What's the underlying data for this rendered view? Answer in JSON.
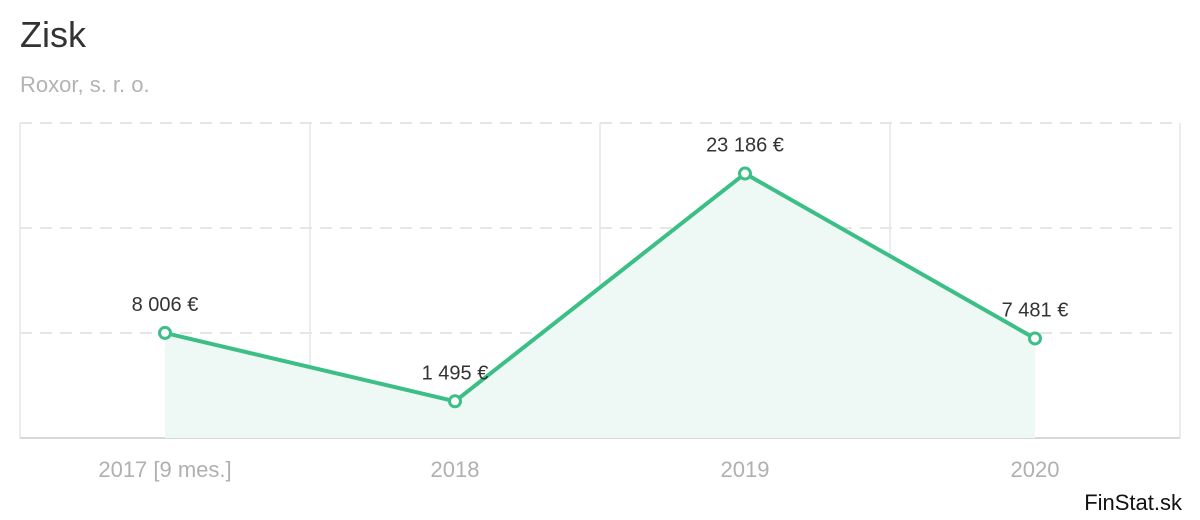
{
  "title": "Zisk",
  "subtitle": "Roxor, s. r. o.",
  "brand": "FinStat.sk",
  "chart_data": {
    "type": "area",
    "categories": [
      "2017 [9 mes.]",
      "2018",
      "2019",
      "2020"
    ],
    "values": [
      8006,
      1495,
      23186,
      7481
    ],
    "data_labels": [
      "8 006 €",
      "1 495 €",
      "23 186 €",
      "7 481 €"
    ],
    "ylim": [
      -2000,
      28000
    ],
    "grid": true,
    "line_color": "#3cbf86",
    "fill_color": "#eef8f4"
  }
}
